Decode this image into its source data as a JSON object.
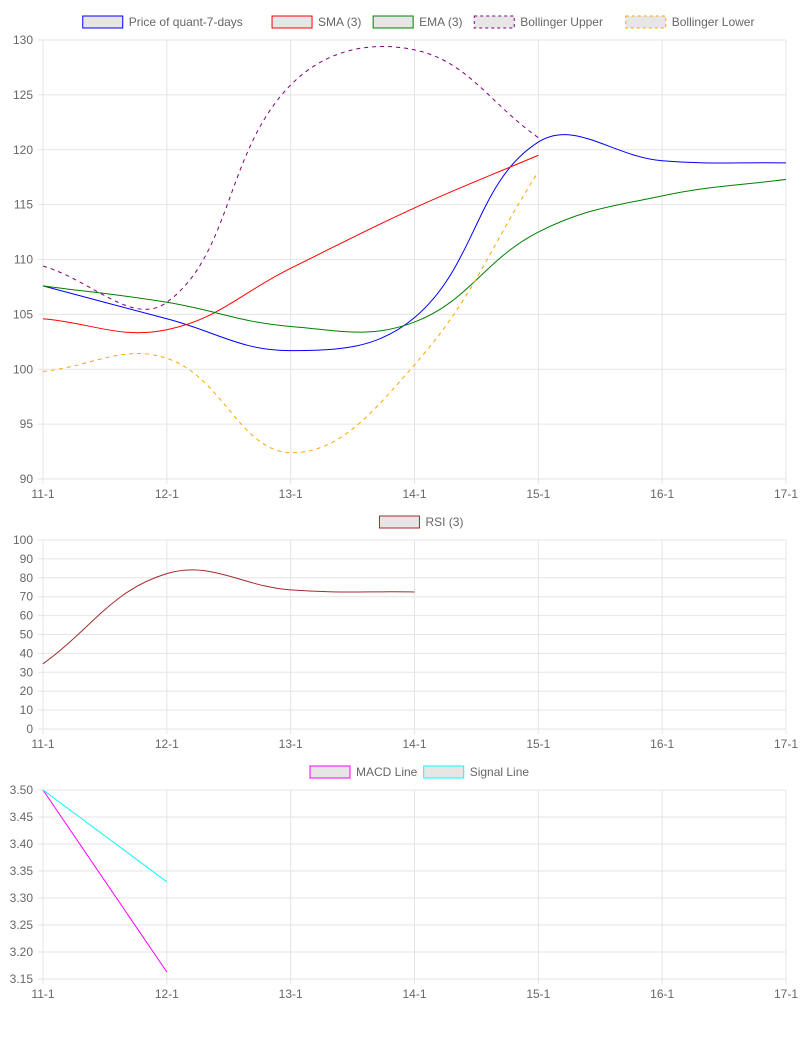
{
  "chart_data": [
    {
      "type": "line",
      "x": [
        "11-1",
        "12-1",
        "13-1",
        "14-1",
        "15-1",
        "16-1",
        "17-1"
      ],
      "ylim": [
        90,
        130
      ],
      "yticks": [
        90,
        95,
        100,
        105,
        110,
        115,
        120,
        125,
        130
      ],
      "grid": true,
      "legend_position": "top",
      "series": [
        {
          "name": "Price of quant-7-days",
          "color": "#0000ff",
          "dashed": false,
          "values": [
            107.6,
            104.6,
            101.7,
            104.7,
            120.7,
            119.0,
            118.8
          ]
        },
        {
          "name": "SMA (3)",
          "color": "#ff0000",
          "dashed": false,
          "values": [
            104.6,
            103.6,
            109.2,
            114.7,
            119.5,
            null,
            null
          ]
        },
        {
          "name": "EMA (3)",
          "color": "#008000",
          "dashed": false,
          "values": [
            107.6,
            106.1,
            103.9,
            104.3,
            112.5,
            115.8,
            117.3
          ]
        },
        {
          "name": "Bollinger Upper",
          "color": "#800080",
          "dashed": true,
          "values": [
            109.4,
            106.1,
            125.9,
            129.1,
            121.1,
            null,
            null
          ]
        },
        {
          "name": "Bollinger Lower",
          "color": "#ffa500",
          "dashed": true,
          "values": [
            99.8,
            101.0,
            92.4,
            100.4,
            118.0,
            null,
            null
          ]
        }
      ]
    },
    {
      "type": "line",
      "x": [
        "11-1",
        "12-1",
        "13-1",
        "14-1",
        "15-1",
        "16-1",
        "17-1"
      ],
      "ylim": [
        0,
        100
      ],
      "yticks": [
        0,
        10,
        20,
        30,
        40,
        50,
        60,
        70,
        80,
        90,
        100
      ],
      "grid": true,
      "legend_position": "top",
      "series": [
        {
          "name": "RSI (3)",
          "color": "#a52a2a",
          "dashed": false,
          "values": [
            34.5,
            82.2,
            73.6,
            72.5,
            null,
            null,
            null
          ]
        }
      ]
    },
    {
      "type": "line",
      "x": [
        "11-1",
        "12-1",
        "13-1",
        "14-1",
        "15-1",
        "16-1",
        "17-1"
      ],
      "ylim": [
        3.15,
        3.5
      ],
      "yticks": [
        "3.15",
        "3.20",
        "3.25",
        "3.30",
        "3.35",
        "3.40",
        "3.45",
        "3.50"
      ],
      "grid": true,
      "legend_position": "top",
      "series": [
        {
          "name": "MACD Line",
          "color": "#ff00ff",
          "dashed": false,
          "tension": 0,
          "values": [
            3.5,
            3.163,
            null,
            null,
            null,
            null,
            null
          ]
        },
        {
          "name": "Signal Line",
          "color": "#00ffff",
          "dashed": false,
          "tension": 0,
          "values": [
            3.5,
            3.33,
            null,
            null,
            null,
            null,
            null
          ]
        }
      ]
    }
  ]
}
